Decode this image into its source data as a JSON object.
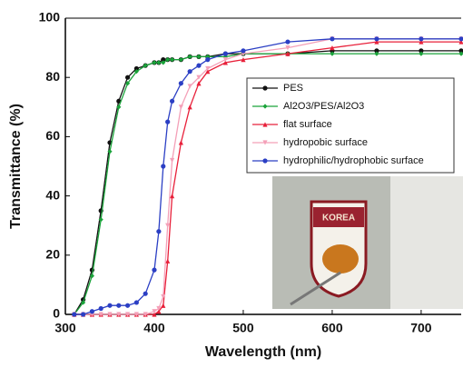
{
  "chart_data": {
    "type": "line",
    "x_label": "Wavelength (nm)",
    "y_label": "Transmittance (%)",
    "x": [
      300,
      310,
      320,
      330,
      340,
      350,
      360,
      370,
      380,
      390,
      400,
      405,
      410,
      415,
      420,
      430,
      440,
      450,
      460,
      480,
      500,
      550,
      600,
      650,
      700,
      745
    ],
    "series": [
      {
        "name": "PES",
        "color": "#111111",
        "marker": "circle",
        "values": [
          null,
          0,
          5,
          15,
          35,
          58,
          72,
          80,
          83,
          84,
          85,
          85,
          86,
          86,
          86,
          86,
          87,
          87,
          87,
          88,
          88,
          88,
          89,
          89,
          89,
          89
        ]
      },
      {
        "name": "Al2O3/PES/Al2O3",
        "color": "#1aa33a",
        "marker": "diamond",
        "values": [
          null,
          0,
          4,
          13,
          32,
          55,
          70,
          78,
          82,
          84,
          85,
          85,
          85,
          86,
          86,
          86,
          87,
          87,
          87,
          87,
          88,
          88,
          88,
          88,
          88,
          88
        ]
      },
      {
        "name": "flat surface",
        "color": "#e8203a",
        "marker": "triangle",
        "values": [
          null,
          0,
          0,
          0,
          0,
          0,
          0,
          0,
          0,
          0,
          0,
          1,
          3,
          18,
          40,
          58,
          70,
          78,
          82,
          85,
          86,
          88,
          90,
          92,
          92,
          92
        ]
      },
      {
        "name": "hydropobic surface",
        "color": "#f4a0b8",
        "marker": "triangle-down",
        "values": [
          null,
          0,
          0,
          0,
          0,
          0,
          0,
          0,
          0,
          0,
          1,
          2,
          6,
          30,
          52,
          70,
          77,
          80,
          83,
          86,
          88,
          90,
          93,
          93,
          93,
          93
        ]
      },
      {
        "name": "hydrophilic/hydrophobic surface",
        "color": "#2b3fc4",
        "marker": "circle",
        "values": [
          null,
          0,
          0,
          1,
          2,
          3,
          3,
          3,
          4,
          7,
          15,
          28,
          50,
          65,
          72,
          78,
          82,
          84,
          86,
          88,
          89,
          92,
          93,
          93,
          93,
          93
        ]
      }
    ],
    "xlim": [
      300,
      745
    ],
    "ylim": [
      0,
      100
    ],
    "xticks": [
      300,
      400,
      500,
      600,
      700
    ],
    "yticks": [
      0,
      20,
      40,
      60,
      80,
      100
    ],
    "photo_text": "KOREA"
  }
}
